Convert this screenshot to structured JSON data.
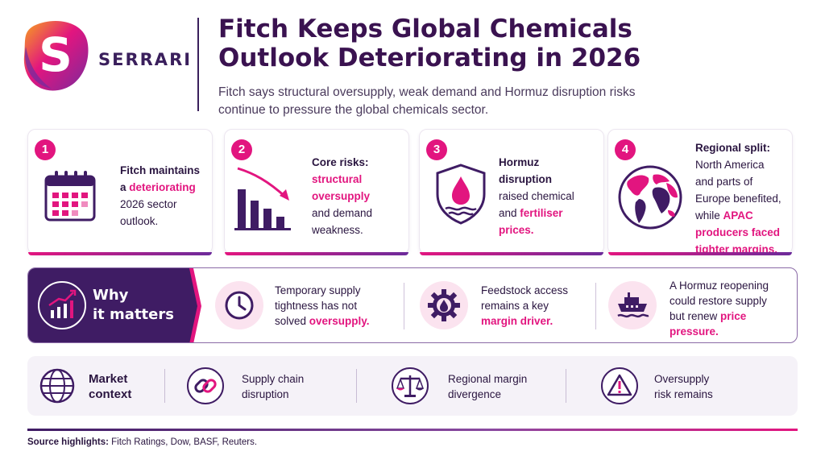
{
  "brand": {
    "name": "SERRARI",
    "logo_icon": "serrari-s-logo-icon"
  },
  "header": {
    "title_line1": "Fitch Keeps Global Chemicals",
    "title_line2": "Outlook Deteriorating in 2026",
    "subtitle_line1": "Fitch says structural oversupply, weak demand and Hormuz disruption risks",
    "subtitle_line2": "continue to pressure the global chemicals sector."
  },
  "cards": [
    {
      "number": "1",
      "icon": "calendar-icon",
      "l1": "Fitch maintains",
      "l2a": "a ",
      "l2b": "deteriorating",
      "l3": "2026 sector",
      "l4": "outlook."
    },
    {
      "number": "2",
      "icon": "declining-bar-chart-icon",
      "l1": "Core risks:",
      "l2": "structural",
      "l3": "oversupply",
      "l4": "and demand",
      "l5": "weakness."
    },
    {
      "number": "3",
      "icon": "oil-drop-shield-icon",
      "l1": "Hormuz",
      "l2": "disruption",
      "l3": "raised chemical",
      "l4a": "and ",
      "l4b": "fertiliser",
      "l5": "prices."
    },
    {
      "number": "4",
      "icon": "globe-map-icon",
      "l1": "Regional split:",
      "l2": "North America",
      "l3": "and parts of",
      "l4": "Europe benefited,",
      "l5a": "while ",
      "l5b": "APAC",
      "l6": "producers faced",
      "l7": "tighter margins."
    }
  ],
  "why": {
    "title_line1": "Why",
    "title_line2": "it matters",
    "icon": "growth-chart-icon",
    "items": [
      {
        "icon": "clock-icon",
        "l1": "Temporary supply",
        "l2": "tightness has not",
        "l3a": "solved ",
        "l3b": "oversupply."
      },
      {
        "icon": "gear-drop-icon",
        "l1": "Feedstock access",
        "l2": "remains a key",
        "l3": "margin driver."
      },
      {
        "icon": "ship-icon",
        "l1": "A Hormuz reopening",
        "l2": "could restore supply",
        "l3a": "but renew ",
        "l3b": "price",
        "l4": "pressure."
      }
    ]
  },
  "market": {
    "title_line1": "Market",
    "title_line2": "context",
    "icon": "globe-grid-icon",
    "items": [
      {
        "icon": "broken-chain-icon",
        "l1": "Supply chain",
        "l2": "disruption"
      },
      {
        "icon": "balance-scale-icon",
        "l1": "Regional margin",
        "l2": "divergence"
      },
      {
        "icon": "warning-triangle-icon",
        "l1": "Oversupply",
        "l2": "risk remains"
      }
    ]
  },
  "footer": {
    "label": "Source highlights:",
    "sources": "Fitch Ratings, Dow, BASF, Reuters."
  },
  "colors": {
    "accent": "#e2157f",
    "primary": "#3f1c64"
  }
}
